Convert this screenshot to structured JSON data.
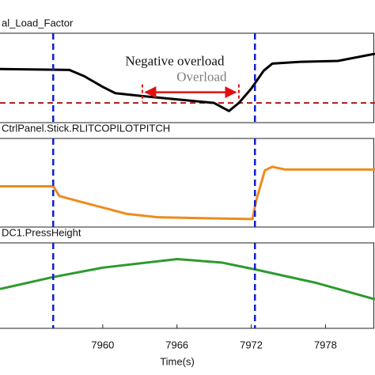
{
  "chart_data": [
    {
      "type": "line",
      "title": "al_Load_Factor",
      "xlim": [
        7951.7,
        7982
      ],
      "ylim": [
        0,
        100
      ],
      "x": [
        7951.7,
        7957.3,
        7958.5,
        7960,
        7961,
        7963,
        7966,
        7969,
        7970.2,
        7971,
        7972,
        7973,
        7973.7,
        7976,
        7979,
        7982
      ],
      "series": [
        {
          "name": "Load_Factor",
          "color": "#000000",
          "values": [
            60,
            59,
            52,
            40,
            33,
            30,
            26,
            22,
            13,
            22,
            38,
            58,
            66,
            68,
            69,
            77
          ]
        }
      ],
      "reference_line": {
        "value": 22,
        "color": "#b01818"
      },
      "markers": {
        "values": [
          7956,
          7972.3
        ],
        "color": "#1020d0"
      },
      "annotation": {
        "text": "Negative overload",
        "hidden_text": "Overload",
        "from": 7963.2,
        "to": 7971,
        "level": 34,
        "color": "#e01010"
      }
    },
    {
      "type": "line",
      "title": "CtrlPanel.Stick.RLITCOPILOTPITCH",
      "xlim": [
        7951.7,
        7982
      ],
      "ylim": [
        0,
        100
      ],
      "x": [
        7951.7,
        7956,
        7956.5,
        7958.1,
        7960,
        7961.9,
        7964.5,
        7972.1,
        7972.4,
        7973.1,
        7973.7,
        7974.7,
        7982
      ],
      "series": [
        {
          "name": "RLITCOPILOTPITCH",
          "color": "#f08a1c",
          "values": [
            46,
            46,
            35,
            29,
            22,
            15,
            11,
            9,
            30,
            64,
            68,
            65,
            65
          ]
        }
      ],
      "markers": {
        "values": [
          7956,
          7972.3
        ],
        "color": "#1020d0"
      }
    },
    {
      "type": "line",
      "title": "DC1.PressHeight",
      "xlim": [
        7951.7,
        7982
      ],
      "ylim": [
        0,
        100
      ],
      "x": [
        7951.7,
        7956,
        7960,
        7966,
        7969.6,
        7972.3,
        7977.3,
        7982
      ],
      "series": [
        {
          "name": "PressHeight",
          "color": "#2e9a2e",
          "values": [
            46,
            60,
            71,
            81,
            77,
            69,
            53,
            34
          ]
        }
      ],
      "markers": {
        "values": [
          7956,
          7972.3
        ],
        "color": "#1020d0"
      },
      "xticks": [
        7960,
        7966,
        7972,
        7978
      ],
      "xlabel": "Time(s)"
    }
  ]
}
